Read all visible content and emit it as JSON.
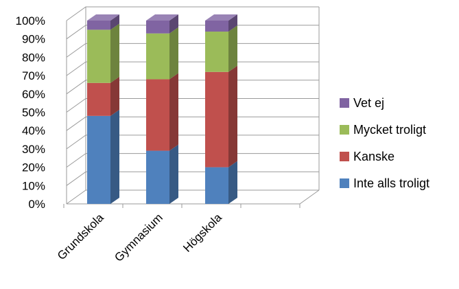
{
  "chart_data": {
    "type": "bar",
    "stacked": true,
    "percent_stacked": true,
    "style": "3d",
    "categories": [
      "Grundskola",
      "Gymnasium",
      "Högskola"
    ],
    "series": [
      {
        "name": "Inte alls troligt",
        "color": "#4f81bd",
        "values": [
          48,
          29,
          20
        ]
      },
      {
        "name": "Kanske",
        "color": "#c0504d",
        "values": [
          18,
          39,
          52
        ]
      },
      {
        "name": "Mycket troligt",
        "color": "#9bbb59",
        "values": [
          29,
          25,
          22
        ]
      },
      {
        "name": "Vet ej",
        "color": "#8064a2",
        "values": [
          5,
          7,
          6
        ]
      }
    ],
    "y_ticks": [
      "0%",
      "10%",
      "20%",
      "30%",
      "40%",
      "50%",
      "60%",
      "70%",
      "80%",
      "90%",
      "100%"
    ],
    "ylim": [
      0,
      100
    ],
    "grid": true,
    "legend_position": "right",
    "legend_order": [
      "Vet ej",
      "Mycket troligt",
      "Kanske",
      "Inte alls troligt"
    ]
  }
}
